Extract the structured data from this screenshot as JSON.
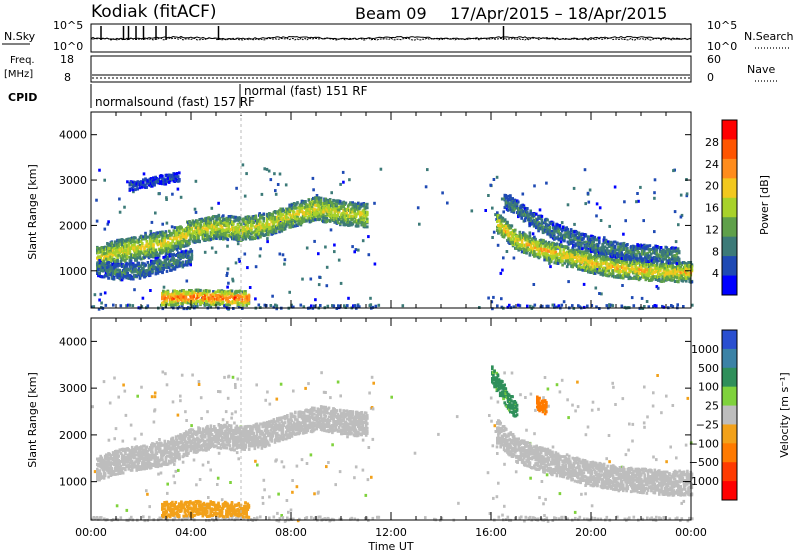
{
  "header": {
    "station": "Kodiak",
    "mode": "(fitACF)",
    "beam": "Beam 09",
    "date_range": "17/Apr/2015 – 18/Apr/2015"
  },
  "top_panels": {
    "nsky": {
      "left_label": "N.Sky",
      "left_ticks": [
        "10^5",
        "10^0"
      ],
      "right_ticks": [
        "10^5",
        "10^0"
      ],
      "right_label": "N.Search"
    },
    "freq": {
      "left_label_1": "Freq.",
      "left_label_2": "[MHz]",
      "left_ticks": [
        "18",
        "8"
      ],
      "right_ticks": [
        "60",
        "0"
      ],
      "right_label": "Nave"
    },
    "cpid": {
      "label": "CPID",
      "programs": [
        {
          "text": "normalsound (fast) 157 RF",
          "start_hr": 0.0
        },
        {
          "text": "normal (fast) 151 RF",
          "start_hr": 6.0
        }
      ]
    }
  },
  "chart_data": [
    {
      "type": "heatmap",
      "name": "power",
      "ylabel": "Slant Range [km]",
      "xlim": [
        0,
        24
      ],
      "ylim": [
        180,
        4500
      ],
      "yticks": [
        1000,
        2000,
        3000,
        4000
      ],
      "colorbar": {
        "label": "Power [dB]",
        "ticks": [
          4,
          8,
          12,
          16,
          20,
          24,
          28
        ],
        "colors": [
          "#0000ff",
          "#1f4ab4",
          "#3c7a78",
          "#5fa04a",
          "#a8d22a",
          "#f2c81e",
          "#ff8c1c",
          "#ff5500",
          "#ff0000"
        ]
      },
      "echo_bands": [
        {
          "t": [
            0.2,
            1.0,
            2.0,
            3.0,
            4.0,
            5.0,
            6.0,
            7.0,
            8.0,
            9.0,
            10.0,
            11.0
          ],
          "r": [
            1300,
            1450,
            1550,
            1650,
            1900,
            2000,
            1950,
            2050,
            2250,
            2400,
            2300,
            2250
          ],
          "width": 260,
          "level": 18
        },
        {
          "t": [
            0.2,
            1.0,
            2.0,
            3.0,
            4.0
          ],
          "r": [
            1100,
            1000,
            1050,
            1200,
            1350
          ],
          "width": 180,
          "level": 10
        },
        {
          "t": [
            16.2,
            17.0,
            18.0,
            19.0,
            20.0,
            21.0,
            22.0,
            23.0,
            24.0
          ],
          "r": [
            2100,
            1700,
            1500,
            1350,
            1200,
            1100,
            1050,
            1000,
            1000
          ],
          "width": 220,
          "level": 20
        },
        {
          "t": [
            16.5,
            17.5,
            18.5,
            19.5,
            20.5,
            21.5,
            22.5,
            23.5
          ],
          "r": [
            2600,
            2200,
            1900,
            1700,
            1550,
            1450,
            1400,
            1350
          ],
          "width": 180,
          "level": 10
        },
        {
          "t": [
            2.8,
            3.5,
            4.2,
            5.0,
            5.8,
            6.3
          ],
          "r": [
            430,
            440,
            450,
            440,
            430,
            420
          ],
          "width": 160,
          "level": 26
        },
        {
          "t": [
            1.5,
            2.0,
            2.5,
            3.0,
            3.5
          ],
          "r": [
            2900,
            2950,
            3000,
            3050,
            3100
          ],
          "width": 100,
          "level": 6
        }
      ]
    },
    {
      "type": "heatmap",
      "name": "velocity",
      "ylabel": "Slant Range [km]",
      "xlabel": "Time UT",
      "xlim": [
        0,
        24
      ],
      "ylim": [
        180,
        4500
      ],
      "yticks": [
        1000,
        2000,
        3000,
        4000
      ],
      "xticks": [
        "00:00",
        "04:00",
        "08:00",
        "12:00",
        "16:00",
        "20:00",
        "00:00"
      ],
      "colorbar": {
        "label": "Velocity [m s⁻¹]",
        "ticks": [
          "1000",
          "500",
          "100",
          "25",
          "−25",
          "−100",
          "−500",
          "−1000"
        ],
        "colors": [
          "#2a4fd0",
          "#3b82a6",
          "#2f8f5a",
          "#7fd23c",
          "#bdbdbd",
          "#f2a11a",
          "#ff7a00",
          "#ff3a00",
          "#ff0000"
        ]
      },
      "echo_bands": [
        {
          "t": [
            0.2,
            1.0,
            2.0,
            3.0,
            4.0,
            5.0,
            6.0,
            7.0,
            8.0,
            9.0,
            10.0,
            11.0
          ],
          "r": [
            1300,
            1450,
            1550,
            1650,
            1900,
            2000,
            1950,
            2050,
            2250,
            2400,
            2300,
            2250
          ],
          "width": 260,
          "level": 0
        },
        {
          "t": [
            16.2,
            17.0,
            18.0,
            19.0,
            20.0,
            21.0,
            22.0,
            23.0,
            24.0
          ],
          "r": [
            2100,
            1700,
            1500,
            1350,
            1200,
            1100,
            1050,
            1000,
            1000
          ],
          "width": 260,
          "level": 0
        },
        {
          "t": [
            2.8,
            3.5,
            4.2,
            5.0,
            5.8,
            6.3
          ],
          "r": [
            430,
            440,
            450,
            440,
            430,
            420
          ],
          "width": 160,
          "level": -60
        },
        {
          "t": [
            16.0,
            16.5,
            17.0
          ],
          "r": [
            3300,
            2900,
            2500
          ],
          "width": 200,
          "level": 150
        },
        {
          "t": [
            17.8,
            18.2
          ],
          "r": [
            2700,
            2600
          ],
          "width": 150,
          "level": -300
        }
      ]
    }
  ],
  "x_axis": {
    "label": "Time UT",
    "ticks": [
      "00:00",
      "04:00",
      "08:00",
      "12:00",
      "16:00",
      "20:00",
      "00:00"
    ]
  }
}
